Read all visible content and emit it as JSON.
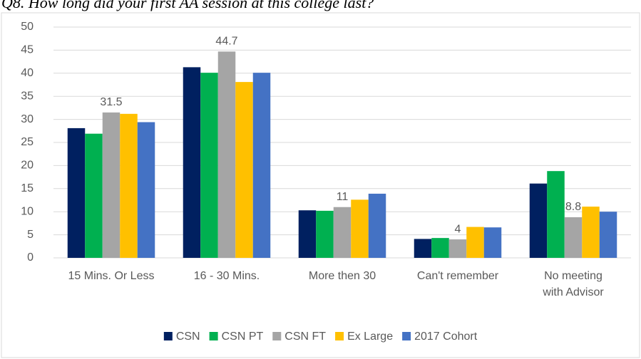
{
  "chart_data": {
    "type": "bar",
    "title": "Q8. How long did your first AA session at this college last?",
    "categories": [
      "15 Mins. Or Less",
      "16 - 30 Mins.",
      "More then 30",
      "Can't remember",
      "No meeting with Advisor"
    ],
    "series": [
      {
        "name": "CSN",
        "color": "#002060",
        "values": [
          28.1,
          41.3,
          10.3,
          4.1,
          16.1
        ]
      },
      {
        "name": "CSN PT",
        "color": "#00b050",
        "values": [
          26.9,
          40.1,
          10.2,
          4.3,
          18.8
        ]
      },
      {
        "name": "CSN FT",
        "color": "#a5a5a5",
        "values": [
          31.5,
          44.7,
          11,
          4,
          8.8
        ],
        "data_labels": true
      },
      {
        "name": "Ex Large",
        "color": "#ffc000",
        "values": [
          31.2,
          38.1,
          12.6,
          6.7,
          11.1
        ]
      },
      {
        "name": "2017 Cohort",
        "color": "#4472c4",
        "values": [
          29.4,
          40.1,
          13.9,
          6.6,
          10.0
        ]
      }
    ],
    "ylim": [
      0,
      50
    ],
    "yticks": [
      0,
      5,
      10,
      15,
      20,
      25,
      30,
      35,
      40,
      45,
      50
    ],
    "grid": true,
    "legend": "bottom"
  }
}
